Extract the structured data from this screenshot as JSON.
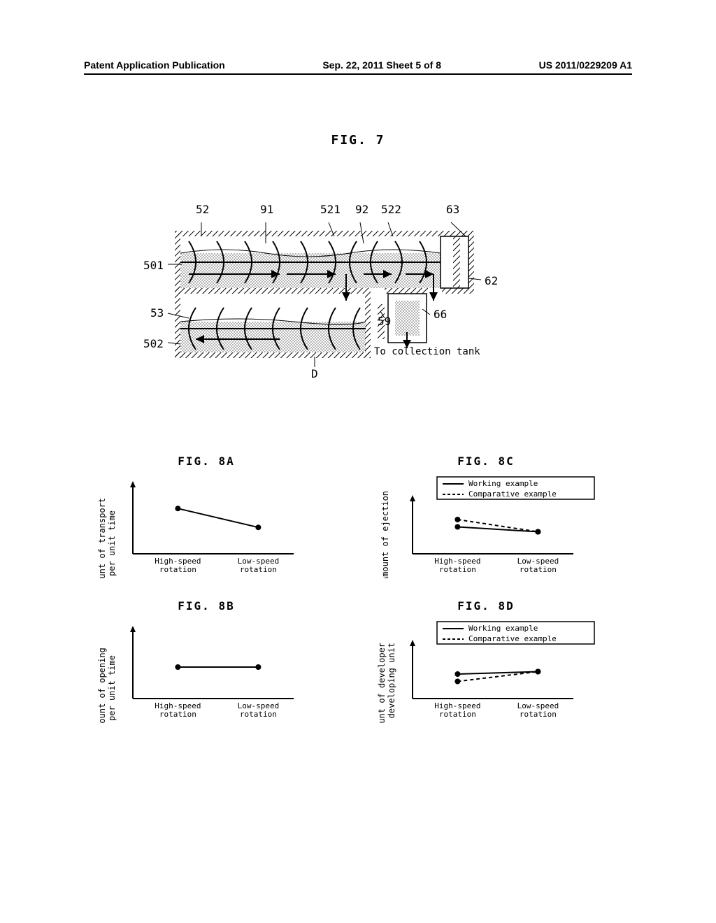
{
  "header": {
    "left": "Patent Application Publication",
    "center": "Sep. 22, 2011  Sheet 5 of 8",
    "right": "US 2011/0229209 A1"
  },
  "fig7": {
    "label": "FIG. 7",
    "refs": {
      "r52": "52",
      "r91": "91",
      "r521": "521",
      "r92": "92",
      "r522": "522",
      "r63": "63",
      "r501": "501",
      "r62": "62",
      "r53": "53",
      "r59": "59",
      "r66": "66",
      "r502": "502",
      "rD": "D"
    },
    "collection_text": "To collection tank"
  },
  "charts": {
    "a": {
      "title": "FIG. 8A",
      "ylabel_line1": "Amount of transport",
      "ylabel_line2": "per unit time",
      "x_left": "High-speed",
      "x_left2": "rotation",
      "x_right": "Low-speed",
      "x_right2": "rotation",
      "series": {
        "y": [
          0.72,
          0.42
        ],
        "color": "#000000"
      }
    },
    "b": {
      "title": "FIG. 8B",
      "ylabel_line1": "Amount of opening",
      "ylabel_line2": "per unit time",
      "x_left": "High-speed",
      "x_left2": "rotation",
      "x_right": "Low-speed",
      "x_right2": "rotation",
      "series": {
        "y": [
          0.5,
          0.5
        ],
        "color": "#000000"
      }
    },
    "c": {
      "title": "FIG. 8C",
      "ylabel": "Amount of ejection",
      "x_left": "High-speed",
      "x_left2": "rotation",
      "x_right": "Low-speed",
      "x_right2": "rotation",
      "legend": {
        "working": "Working example",
        "comparative": "Comparative example"
      },
      "working": {
        "y": [
          0.55,
          0.45
        ],
        "color": "#000000"
      },
      "comparative": {
        "y": [
          0.7,
          0.45
        ],
        "color": "#000000"
      }
    },
    "d": {
      "title": "FIG. 8D",
      "ylabel_line1": "Amount of developer",
      "ylabel_line2": "in developing unit",
      "x_left": "High-speed",
      "x_left2": "rotation",
      "x_right": "Low-speed",
      "x_right2": "rotation",
      "legend": {
        "working": "Working example",
        "comparative": "Comparative example"
      },
      "working": {
        "y": [
          0.5,
          0.55
        ],
        "color": "#000000"
      },
      "comparative": {
        "y": [
          0.35,
          0.55
        ],
        "color": "#000000"
      }
    }
  },
  "style": {
    "line_w": 2,
    "marker_r": 4,
    "axis_color": "#000000",
    "dash": "5,4"
  }
}
